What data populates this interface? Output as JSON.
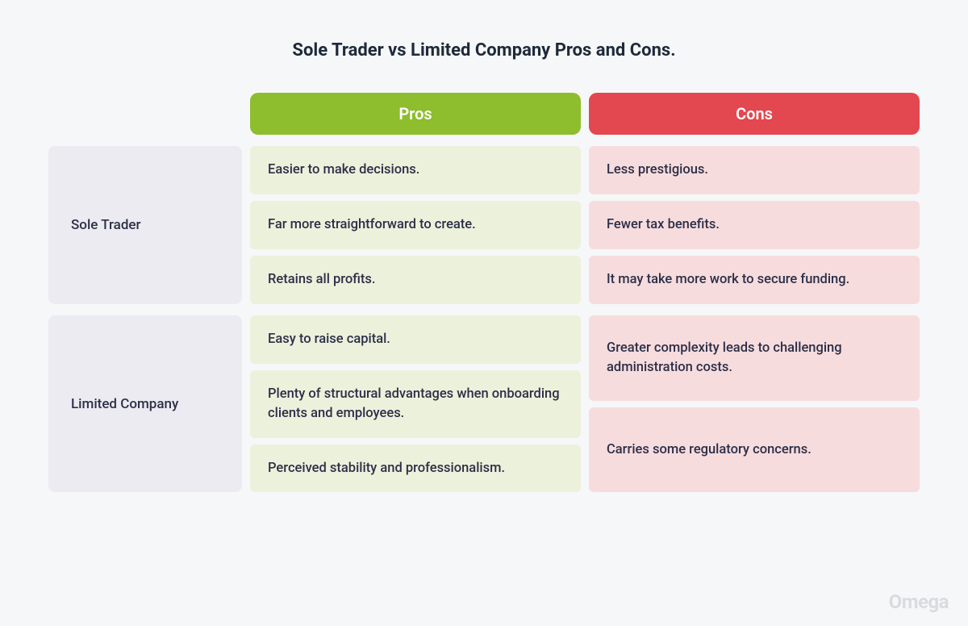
{
  "title": "Sole Trader vs Limited Company Pros and Cons.",
  "colors": {
    "page_bg": "#f6f7f8",
    "title_text": "#1e2a3a",
    "row_label_bg": "#ecebf2",
    "body_text": "#2c2f47",
    "pros_header_bg": "#8ebd2e",
    "cons_header_bg": "#e3474f",
    "pros_cell_bg": "#ecf1dc",
    "cons_cell_bg": "#f7dcde",
    "watermark": "#d9dcde"
  },
  "columns": {
    "pros": "Pros",
    "cons": "Cons"
  },
  "rows": [
    {
      "label": "Sole Trader",
      "pros": [
        "Easier to make decisions.",
        "Far more straightforward to create.",
        "Retains all profits."
      ],
      "cons": [
        "Less prestigious.",
        "Fewer tax benefits.",
        "It may take more work to secure funding."
      ]
    },
    {
      "label": "Limited Company",
      "pros": [
        "Easy to raise capital.",
        "Plenty of structural advantages when onboarding clients and employees.",
        "Perceived stability and professionalism."
      ],
      "cons": [
        "Greater complexity leads to challenging administration costs.",
        "Carries some regulatory concerns."
      ]
    }
  ],
  "watermark": "Omega"
}
